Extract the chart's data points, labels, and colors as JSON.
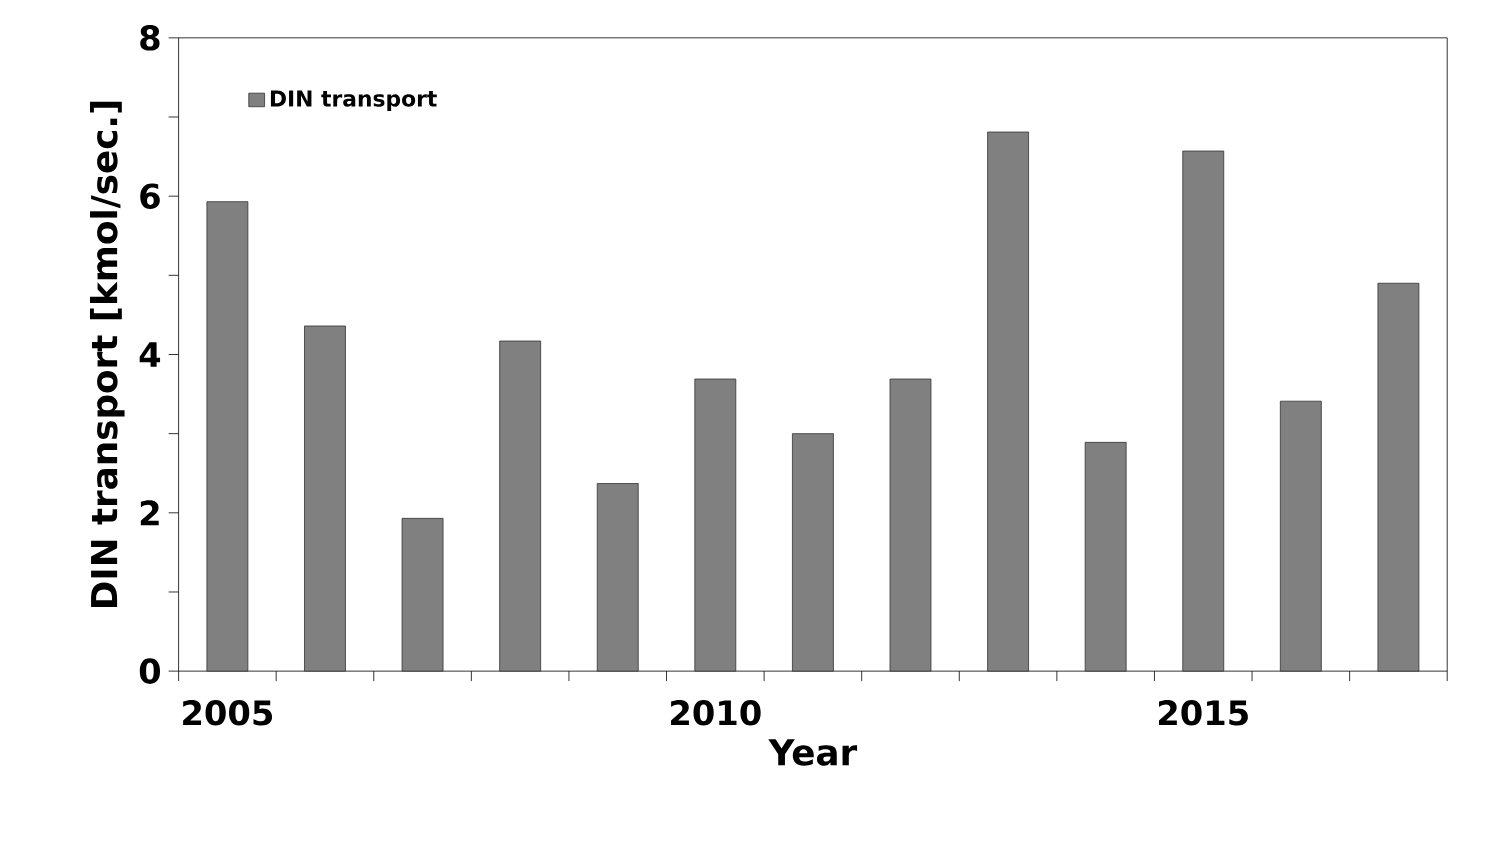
{
  "chart_data": {
    "type": "bar",
    "xlabel": "Year",
    "ylabel": "DIN transport [kmol/sec.]",
    "categories": [
      "2005",
      null,
      null,
      null,
      null,
      "2010",
      null,
      null,
      null,
      null,
      "2015",
      null,
      null
    ],
    "series": [
      {
        "name": "DIN transport",
        "color": "#808080",
        "values": [
          5.93,
          4.36,
          1.93,
          4.17,
          2.37,
          3.69,
          3.0,
          3.69,
          6.81,
          2.89,
          6.57,
          3.41,
          4.9
        ]
      }
    ],
    "ylim": [
      0,
      8
    ],
    "yticks": [
      0,
      {
        "value": 1,
        "label": null
      },
      2,
      {
        "value": 3,
        "label": null
      },
      4,
      {
        "value": 5,
        "label": null
      },
      6,
      {
        "value": 7,
        "label": null
      },
      8
    ],
    "legend": "top left",
    "grid": false
  }
}
